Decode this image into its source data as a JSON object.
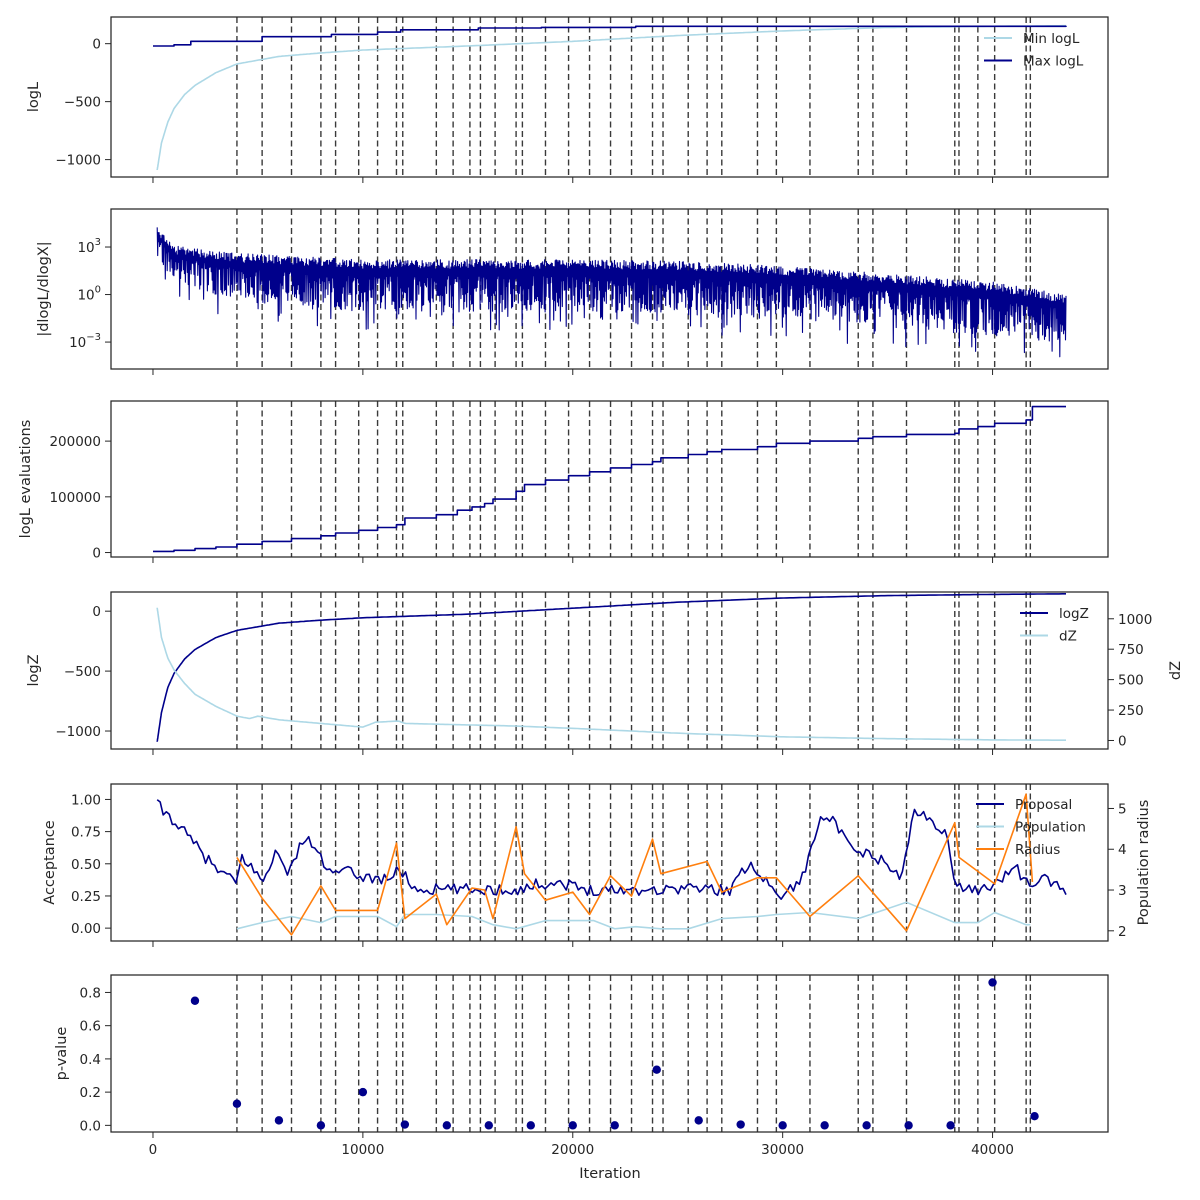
{
  "chart_data": [
    {
      "id": "logl",
      "type": "line",
      "ylabel": "logL",
      "ylim": [
        -1150,
        230
      ],
      "yticks": [
        0,
        -500,
        -1000
      ],
      "ytick_labels": [
        "0",
        "−500",
        "−1000"
      ],
      "legend": {
        "position": "top-right",
        "entries": [
          "Min logL",
          "Max logL"
        ]
      },
      "series": [
        {
          "name": "Min logL",
          "color": "#add8e6",
          "kind": "loglike_min",
          "x": [
            200,
            400,
            700,
            1000,
            1500,
            2000,
            3000,
            4000,
            6000,
            8000,
            10000,
            15000,
            20000,
            25000,
            30000,
            35000,
            40000,
            43500
          ],
          "y": [
            -1090,
            -860,
            -680,
            -560,
            -440,
            -360,
            -250,
            -175,
            -110,
            -80,
            -55,
            -20,
            20,
            70,
            110,
            140,
            150,
            155
          ]
        },
        {
          "name": "Max logL",
          "color": "#00008b",
          "kind": "step",
          "x": [
            0,
            1000,
            1800,
            4000,
            5200,
            8500,
            10700,
            11800,
            15500,
            18500,
            23000,
            43500
          ],
          "y": [
            -20,
            -10,
            20,
            20,
            60,
            80,
            100,
            120,
            135,
            140,
            150,
            155
          ]
        }
      ]
    },
    {
      "id": "dlogl",
      "type": "line",
      "ylabel": "|dlogL/dlogX|",
      "yscale": "log",
      "ylim_log10": [
        -4.7,
        5.4
      ],
      "yticks_log10": [
        3,
        0,
        -3
      ],
      "ytick_labels": [
        "10",
        "10",
        "10"
      ],
      "ytick_exponents": [
        "3",
        "0",
        "−3"
      ],
      "series": [
        {
          "name": "|dlogL/dlogX|",
          "color": "#00008b",
          "kind": "noisy_log",
          "x": [
            200,
            1000,
            4000,
            10000,
            20000,
            25000,
            30000,
            35000,
            40000,
            43500
          ],
          "upper_log10": [
            4.4,
            3.1,
            2.6,
            2.2,
            2.2,
            2.1,
            1.8,
            1.3,
            0.8,
            0.0
          ],
          "lower_log10": [
            2.3,
            0.8,
            -0.4,
            -1.1,
            -1.1,
            -1.3,
            -1.6,
            -2.1,
            -2.6,
            -3.0
          ]
        }
      ]
    },
    {
      "id": "evals",
      "type": "line",
      "ylabel": "logL evaluations",
      "ylim": [
        -8000,
        272000
      ],
      "yticks": [
        200000,
        100000,
        0
      ],
      "ytick_labels": [
        "200000",
        "100000",
        "0"
      ],
      "series": [
        {
          "name": "logL evaluations",
          "color": "#00008b",
          "kind": "step",
          "x": [
            0,
            1000,
            2000,
            3000,
            4000,
            5200,
            6600,
            8000,
            8700,
            9800,
            10700,
            11600,
            12000,
            13500,
            14500,
            15200,
            15800,
            16200,
            17300,
            17700,
            18700,
            19800,
            20800,
            21800,
            22800,
            23800,
            24200,
            25500,
            26400,
            27100,
            28800,
            29700,
            31300,
            33600,
            34300,
            35900,
            38200,
            38400,
            39300,
            40100,
            41600,
            41900,
            43500
          ],
          "y": [
            2000,
            4000,
            7000,
            10000,
            15000,
            20000,
            25000,
            30000,
            35000,
            40000,
            45000,
            50000,
            62000,
            68000,
            76000,
            82000,
            88000,
            96000,
            110000,
            122000,
            130000,
            138000,
            145000,
            152000,
            158000,
            163000,
            170000,
            176000,
            181000,
            185000,
            190000,
            196000,
            200000,
            205000,
            208000,
            212000,
            214000,
            222000,
            226000,
            232000,
            238000,
            262000,
            262000
          ]
        }
      ]
    },
    {
      "id": "logz",
      "type": "line",
      "ylabel": "logZ",
      "ylabel_right": "dZ",
      "ylim": [
        -1150,
        160
      ],
      "yticks": [
        0,
        -500,
        -1000
      ],
      "ytick_labels": [
        "0",
        "−500",
        "−1000"
      ],
      "ylim_right": [
        -70,
        1220
      ],
      "yticks_right": [
        1000,
        750,
        500,
        250,
        0
      ],
      "ytick_labels_right": [
        "1000",
        "750",
        "500",
        "250",
        "0"
      ],
      "legend": {
        "position": "top-right",
        "entries": [
          "logZ",
          "dZ"
        ]
      },
      "series": [
        {
          "name": "logZ",
          "color": "#00008b",
          "axis": "left",
          "kind": "smooth",
          "x": [
            200,
            400,
            700,
            1000,
            1500,
            2000,
            3000,
            4000,
            6000,
            8000,
            10000,
            15000,
            20000,
            25000,
            30000,
            35000,
            40000,
            43500
          ],
          "y": [
            -1090,
            -850,
            -640,
            -520,
            -400,
            -320,
            -220,
            -160,
            -100,
            -75,
            -55,
            -25,
            25,
            75,
            110,
            130,
            140,
            145
          ]
        },
        {
          "name": "dZ",
          "color": "#add8e6",
          "axis": "right",
          "kind": "smooth",
          "x": [
            200,
            400,
            700,
            1000,
            1500,
            2000,
            3000,
            4000,
            4600,
            5000,
            6000,
            8000,
            10000,
            10600,
            11700,
            12000,
            17000,
            20000,
            25000,
            30000,
            35000,
            40000,
            43500
          ],
          "y": [
            1090,
            850,
            680,
            580,
            470,
            380,
            280,
            200,
            180,
            200,
            170,
            140,
            110,
            150,
            160,
            140,
            120,
            100,
            60,
            30,
            15,
            5,
            2
          ]
        }
      ]
    },
    {
      "id": "acceptance",
      "type": "line",
      "ylabel": "Acceptance",
      "ylabel_right": "Population radius",
      "ylim": [
        -0.1,
        1.12
      ],
      "yticks": [
        1.0,
        0.75,
        0.5,
        0.25,
        0.0
      ],
      "ytick_labels": [
        "1.00",
        "0.75",
        "0.50",
        "0.25",
        "0.00"
      ],
      "ylim_right": [
        1.75,
        5.6
      ],
      "yticks_right": [
        5,
        4,
        3,
        2
      ],
      "ytick_labels_right": [
        "5",
        "4",
        "3",
        "2"
      ],
      "legend": {
        "position": "top-right",
        "entries": [
          "Proposal",
          "Population",
          "Radius"
        ]
      },
      "series": [
        {
          "name": "Proposal",
          "color": "#00008b",
          "axis": "left",
          "kind": "jitter",
          "x": [
            200,
            500,
            1000,
            1500,
            2000,
            2500,
            3000,
            3500,
            4000,
            4200,
            4600,
            5200,
            5800,
            6300,
            6600,
            7000,
            7500,
            8000,
            8500,
            9000,
            10000,
            11000,
            11800,
            12500,
            13500,
            14500,
            15500,
            16500,
            17500,
            18500,
            19500,
            20500,
            21500,
            22500,
            23500,
            24500,
            25500,
            26500,
            27500,
            28500,
            29500,
            30000,
            31000,
            31800,
            32300,
            33300,
            34500,
            35500,
            35900,
            36200,
            37000,
            37800,
            38200,
            38400,
            38800,
            39500,
            40100,
            40500,
            41000,
            41800,
            42300,
            43500
          ],
          "y": [
            0.97,
            0.9,
            0.84,
            0.74,
            0.65,
            0.55,
            0.46,
            0.4,
            0.35,
            0.55,
            0.5,
            0.35,
            0.6,
            0.45,
            0.45,
            0.67,
            0.67,
            0.55,
            0.4,
            0.45,
            0.4,
            0.38,
            0.45,
            0.3,
            0.3,
            0.3,
            0.3,
            0.3,
            0.3,
            0.35,
            0.35,
            0.3,
            0.3,
            0.3,
            0.3,
            0.3,
            0.32,
            0.3,
            0.3,
            0.52,
            0.3,
            0.25,
            0.4,
            0.9,
            0.85,
            0.6,
            0.55,
            0.4,
            0.55,
            0.9,
            0.85,
            0.75,
            0.3,
            0.35,
            0.3,
            0.3,
            0.35,
            0.4,
            0.5,
            0.3,
            0.4,
            0.3
          ]
        },
        {
          "name": "Population",
          "color": "#add8e6",
          "axis": "right",
          "kind": "plain",
          "x": [
            4000,
            5200,
            6600,
            8000,
            8700,
            9800,
            10700,
            11600,
            12000,
            13500,
            15200,
            16200,
            17300,
            18700,
            20000,
            21000,
            22000,
            23000,
            24200,
            25500,
            27100,
            28800,
            29700,
            31300,
            33600,
            35900,
            38200,
            39300,
            40100,
            41600,
            41800
          ],
          "y": [
            2.05,
            2.2,
            2.35,
            2.2,
            2.35,
            2.35,
            2.35,
            2.1,
            2.4,
            2.4,
            2.35,
            2.15,
            2.05,
            2.25,
            2.25,
            2.25,
            2.05,
            2.1,
            2.05,
            2.05,
            2.3,
            2.35,
            2.4,
            2.45,
            2.3,
            2.7,
            2.2,
            2.2,
            2.45,
            2.15,
            2.15
          ]
        },
        {
          "name": "Radius",
          "color": "#ff7f0e",
          "axis": "right",
          "kind": "plain",
          "x": [
            4000,
            5200,
            6600,
            8000,
            8700,
            9800,
            10700,
            11600,
            12000,
            13500,
            14000,
            15200,
            15800,
            16200,
            17300,
            17700,
            18700,
            20000,
            20800,
            21800,
            22800,
            23800,
            24200,
            26400,
            27100,
            28800,
            29700,
            31300,
            33600,
            35900,
            38200,
            38400,
            40100,
            41600,
            41900
          ],
          "y": [
            3.8,
            2.8,
            1.9,
            3.1,
            2.5,
            2.5,
            2.5,
            4.15,
            2.3,
            2.9,
            2.15,
            3.05,
            3.0,
            2.3,
            4.55,
            3.4,
            2.75,
            2.95,
            2.4,
            3.35,
            2.85,
            4.25,
            3.4,
            3.7,
            2.95,
            3.3,
            3.3,
            2.35,
            3.35,
            2.0,
            4.65,
            3.8,
            3.15,
            5.35,
            3.2
          ]
        }
      ]
    },
    {
      "id": "pvalue",
      "type": "scatter",
      "ylabel": "p-value",
      "xlabel": "Iteration",
      "ylim": [
        -0.04,
        0.905
      ],
      "yticks": [
        0.8,
        0.6,
        0.4,
        0.2,
        0.0
      ],
      "ytick_labels": [
        "0.8",
        "0.6",
        "0.4",
        "0.2",
        "0.0"
      ],
      "series": [
        {
          "name": "p-value",
          "color": "#00008b",
          "x": [
            2000,
            4000,
            6000,
            8000,
            10000,
            12000,
            14000,
            16000,
            18000,
            20000,
            22000,
            24000,
            26000,
            28000,
            30000,
            32000,
            34000,
            36000,
            38000,
            40000,
            42000
          ],
          "y": [
            0.75,
            0.13,
            0.03,
            0.0,
            0.2,
            0.005,
            0.0,
            0.0,
            0.0,
            0.0,
            0.0,
            0.335,
            0.03,
            0.005,
            0.0,
            0.0,
            0.0,
            0.0,
            0.0,
            0.86,
            0.055
          ]
        }
      ]
    }
  ],
  "shared_x": {
    "xlim": [
      -2000,
      45500
    ],
    "xticks": [
      0,
      10000,
      20000,
      30000,
      40000
    ],
    "xtick_labels": [
      "0",
      "10000",
      "20000",
      "30000",
      "40000"
    ],
    "xlabel": "Iteration",
    "insertion_lines": [
      4000,
      5200,
      6600,
      8000,
      8700,
      9800,
      10700,
      11600,
      11900,
      13500,
      14300,
      15100,
      15600,
      16300,
      17300,
      17600,
      18700,
      19800,
      20800,
      21800,
      22800,
      23800,
      24300,
      25500,
      26400,
      27100,
      28800,
      29700,
      31300,
      33600,
      34300,
      35900,
      38200,
      38400,
      39300,
      40100,
      41600,
      41800
    ]
  }
}
